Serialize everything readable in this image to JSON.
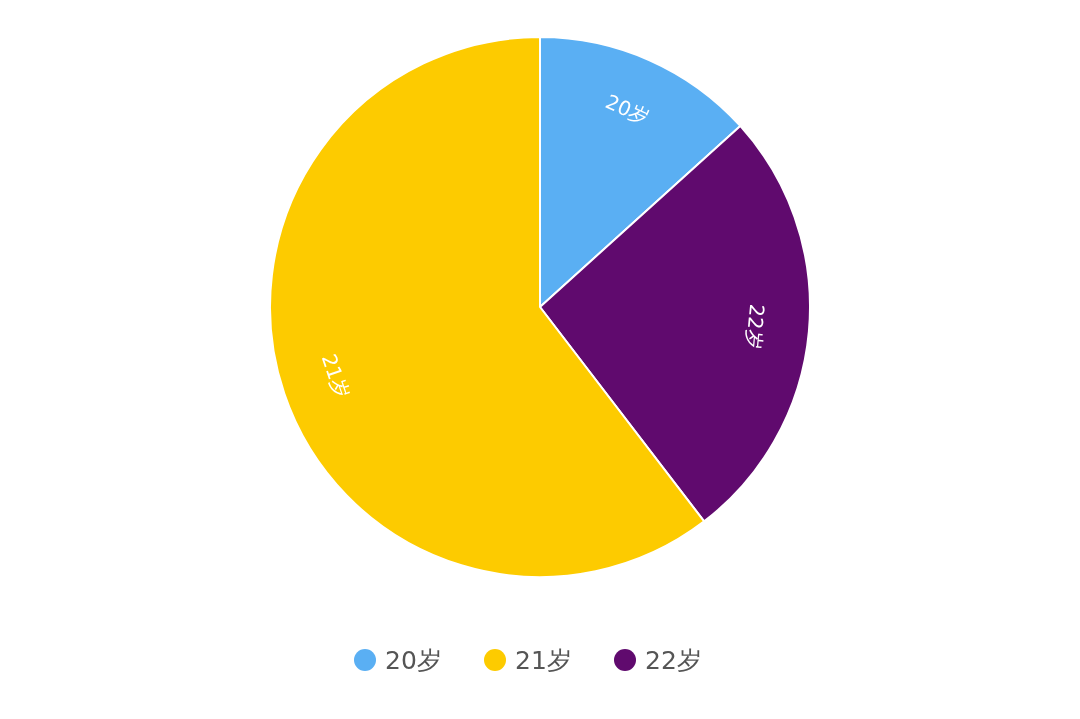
{
  "chart_data": {
    "type": "pie",
    "categories": [
      "20岁",
      "21岁",
      "22岁"
    ],
    "values": [
      13.3,
      60.4,
      26.3
    ],
    "colors": [
      "#5aaff3",
      "#fdcb00",
      "#600a6e"
    ],
    "legend": "bottom"
  }
}
